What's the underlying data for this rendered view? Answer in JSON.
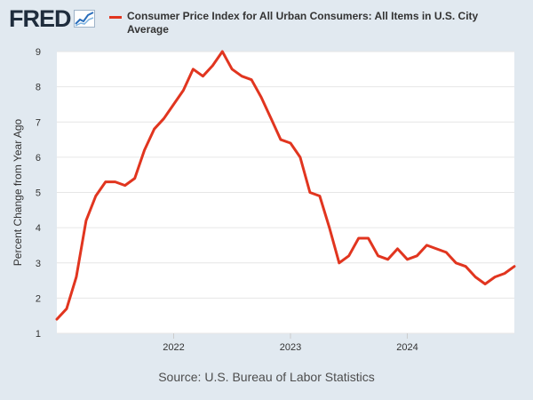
{
  "branding": {
    "logo_text": "FRED",
    "logo_icon": "trend-chart-icon"
  },
  "colors": {
    "background": "#e1e9f0",
    "plot_background": "#ffffff",
    "series_line": "#e1351f",
    "grid": "#e6e6e6",
    "text": "#333333"
  },
  "source_text": "Source: U.S. Bureau of Labor Statistics",
  "chart_data": {
    "type": "line",
    "title": "Consumer Price Index for All Urban Consumers: All Items in U.S. City Average",
    "xlabel": "",
    "ylabel": "Percent Change from Year Ago",
    "ylim": [
      1,
      9
    ],
    "yticks": [
      1,
      2,
      3,
      4,
      5,
      6,
      7,
      8,
      9
    ],
    "xlim": [
      "2021-01",
      "2024-12"
    ],
    "xticks": [
      "2022",
      "2023",
      "2024"
    ],
    "grid": "horizontal",
    "legend_position": "top",
    "series": [
      {
        "name": "Consumer Price Index for All Urban Consumers: All Items in U.S. City Average",
        "color": "#e1351f",
        "x": [
          "2021-01",
          "2021-02",
          "2021-03",
          "2021-04",
          "2021-05",
          "2021-06",
          "2021-07",
          "2021-08",
          "2021-09",
          "2021-10",
          "2021-11",
          "2021-12",
          "2022-01",
          "2022-02",
          "2022-03",
          "2022-04",
          "2022-05",
          "2022-06",
          "2022-07",
          "2022-08",
          "2022-09",
          "2022-10",
          "2022-11",
          "2022-12",
          "2023-01",
          "2023-02",
          "2023-03",
          "2023-04",
          "2023-05",
          "2023-06",
          "2023-07",
          "2023-08",
          "2023-09",
          "2023-10",
          "2023-11",
          "2023-12",
          "2024-01",
          "2024-02",
          "2024-03",
          "2024-04",
          "2024-05",
          "2024-06",
          "2024-07",
          "2024-08",
          "2024-09",
          "2024-10",
          "2024-11",
          "2024-12"
        ],
        "values": [
          1.4,
          1.7,
          2.6,
          4.2,
          4.9,
          5.3,
          5.3,
          5.2,
          5.4,
          6.2,
          6.8,
          7.1,
          7.5,
          7.9,
          8.5,
          8.3,
          8.6,
          9.0,
          8.5,
          8.3,
          8.2,
          7.7,
          7.1,
          6.5,
          6.4,
          6.0,
          5.0,
          4.9,
          4.0,
          3.0,
          3.2,
          3.7,
          3.7,
          3.2,
          3.1,
          3.4,
          3.1,
          3.2,
          3.5,
          3.4,
          3.3,
          3.0,
          2.9,
          2.6,
          2.4,
          2.6,
          2.7,
          2.9
        ]
      }
    ]
  }
}
